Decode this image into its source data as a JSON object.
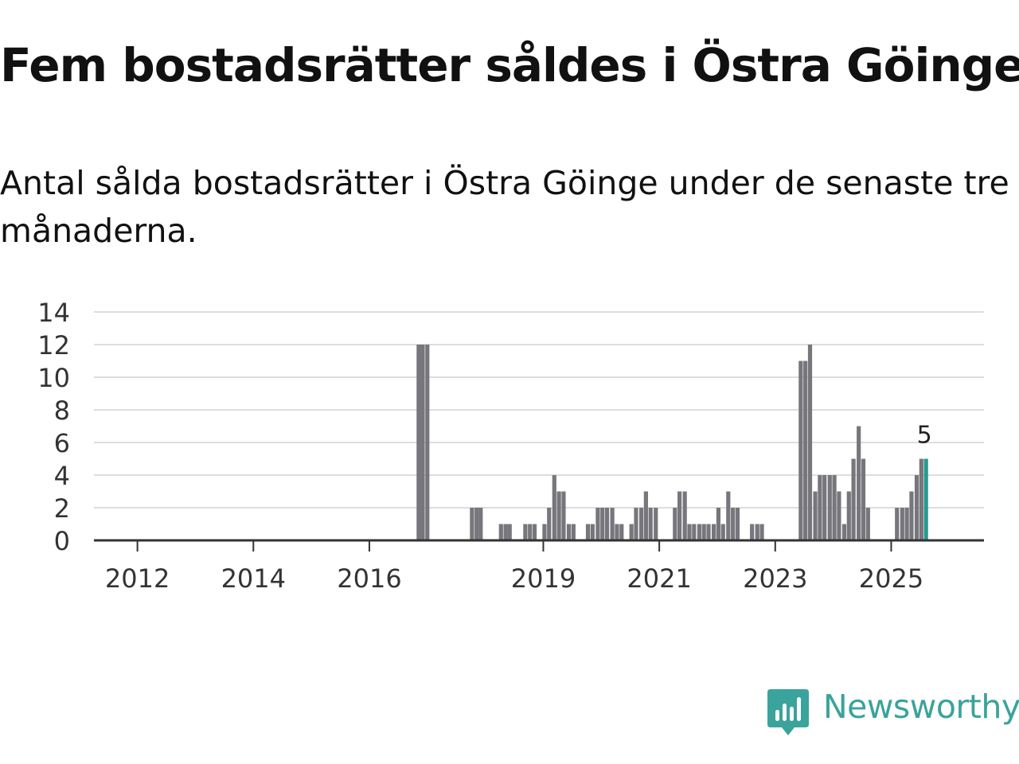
{
  "header": {
    "title": "Fem bostadsrätter såldes i Östra Göinge",
    "subtitle": "Antal sålda bostadsrätter i Östra Göinge under de senaste tre månaderna."
  },
  "brand": {
    "name": "Newsworthy",
    "icon": "newsworthy-logo-icon",
    "color": "#3aa39b"
  },
  "chart_data": {
    "type": "bar",
    "title": "Fem bostadsrätter såldes i Östra Göinge",
    "xlabel": "",
    "ylabel": "",
    "ylim": [
      0,
      14
    ],
    "yticks": [
      0,
      2,
      4,
      6,
      8,
      10,
      12,
      14
    ],
    "xlim": [
      2011.0,
      2026.35
    ],
    "xticks": [
      {
        "label": "2012",
        "value": 2011.75
      },
      {
        "label": "2014",
        "value": 2013.75
      },
      {
        "label": "2016",
        "value": 2015.75
      },
      {
        "label": "2019",
        "value": 2018.75
      },
      {
        "label": "2021",
        "value": 2020.75
      },
      {
        "label": "2023",
        "value": 2022.75
      },
      {
        "label": "2025",
        "value": 2024.75
      }
    ],
    "grid": true,
    "bar_color": "#77767c",
    "highlight_color": "#26998f",
    "annotation": {
      "text": "5",
      "index": -1
    },
    "series": [
      {
        "name": "Antal sålda bostadsrätter",
        "points": [
          {
            "x": 2016.6,
            "y": 12
          },
          {
            "x": 2016.67,
            "y": 12
          },
          {
            "x": 2016.75,
            "y": 12
          },
          {
            "x": 2017.52,
            "y": 2
          },
          {
            "x": 2017.6,
            "y": 2
          },
          {
            "x": 2017.67,
            "y": 2
          },
          {
            "x": 2018.02,
            "y": 1
          },
          {
            "x": 2018.1,
            "y": 1
          },
          {
            "x": 2018.17,
            "y": 1
          },
          {
            "x": 2018.44,
            "y": 1
          },
          {
            "x": 2018.52,
            "y": 1
          },
          {
            "x": 2018.6,
            "y": 1
          },
          {
            "x": 2018.77,
            "y": 1
          },
          {
            "x": 2018.85,
            "y": 2
          },
          {
            "x": 2018.94,
            "y": 4
          },
          {
            "x": 2019.02,
            "y": 3
          },
          {
            "x": 2019.1,
            "y": 3
          },
          {
            "x": 2019.19,
            "y": 1
          },
          {
            "x": 2019.27,
            "y": 1
          },
          {
            "x": 2019.52,
            "y": 1
          },
          {
            "x": 2019.6,
            "y": 1
          },
          {
            "x": 2019.69,
            "y": 2
          },
          {
            "x": 2019.77,
            "y": 2
          },
          {
            "x": 2019.85,
            "y": 2
          },
          {
            "x": 2019.94,
            "y": 2
          },
          {
            "x": 2020.02,
            "y": 1
          },
          {
            "x": 2020.1,
            "y": 1
          },
          {
            "x": 2020.27,
            "y": 1
          },
          {
            "x": 2020.35,
            "y": 2
          },
          {
            "x": 2020.44,
            "y": 2
          },
          {
            "x": 2020.52,
            "y": 3
          },
          {
            "x": 2020.6,
            "y": 2
          },
          {
            "x": 2020.69,
            "y": 2
          },
          {
            "x": 2021.02,
            "y": 2
          },
          {
            "x": 2021.1,
            "y": 3
          },
          {
            "x": 2021.19,
            "y": 3
          },
          {
            "x": 2021.27,
            "y": 1
          },
          {
            "x": 2021.35,
            "y": 1
          },
          {
            "x": 2021.44,
            "y": 1
          },
          {
            "x": 2021.52,
            "y": 1
          },
          {
            "x": 2021.6,
            "y": 1
          },
          {
            "x": 2021.69,
            "y": 1
          },
          {
            "x": 2021.77,
            "y": 2
          },
          {
            "x": 2021.85,
            "y": 1
          },
          {
            "x": 2021.94,
            "y": 3
          },
          {
            "x": 2022.02,
            "y": 2
          },
          {
            "x": 2022.1,
            "y": 2
          },
          {
            "x": 2022.35,
            "y": 1
          },
          {
            "x": 2022.44,
            "y": 1
          },
          {
            "x": 2022.52,
            "y": 1
          },
          {
            "x": 2023.19,
            "y": 11
          },
          {
            "x": 2023.27,
            "y": 11
          },
          {
            "x": 2023.35,
            "y": 12
          },
          {
            "x": 2023.44,
            "y": 3
          },
          {
            "x": 2023.52,
            "y": 4
          },
          {
            "x": 2023.6,
            "y": 4
          },
          {
            "x": 2023.69,
            "y": 4
          },
          {
            "x": 2023.77,
            "y": 4
          },
          {
            "x": 2023.85,
            "y": 3
          },
          {
            "x": 2023.94,
            "y": 1
          },
          {
            "x": 2024.02,
            "y": 3
          },
          {
            "x": 2024.1,
            "y": 5
          },
          {
            "x": 2024.19,
            "y": 7
          },
          {
            "x": 2024.27,
            "y": 5
          },
          {
            "x": 2024.35,
            "y": 2
          },
          {
            "x": 2024.85,
            "y": 2
          },
          {
            "x": 2024.94,
            "y": 2
          },
          {
            "x": 2025.02,
            "y": 2
          },
          {
            "x": 2025.1,
            "y": 3
          },
          {
            "x": 2025.19,
            "y": 4
          },
          {
            "x": 2025.27,
            "y": 5
          },
          {
            "x": 2025.35,
            "y": 5
          }
        ]
      }
    ]
  }
}
